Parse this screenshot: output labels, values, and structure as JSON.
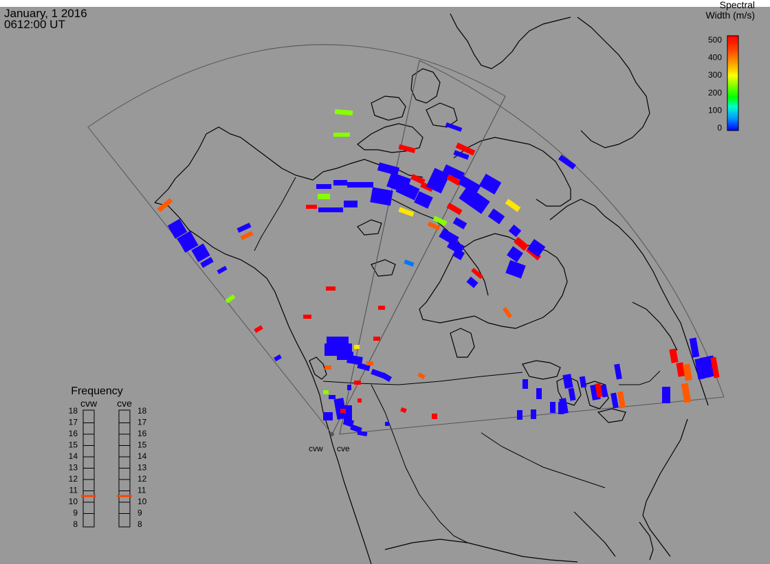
{
  "header": {
    "date": "January, 1 2016",
    "time": "0612:00 UT"
  },
  "colorbar": {
    "title_line1": "Spectral",
    "title_line2": "Width (m/s)",
    "ticks": [
      "500",
      "400",
      "300",
      "200",
      "100",
      "0"
    ],
    "gradient_colors": [
      "#ff0000",
      "#ff4400",
      "#ffa500",
      "#ffff00",
      "#66ff00",
      "#00ff00",
      "#00ffcc",
      "#0099ff",
      "#0000ff"
    ]
  },
  "frequency_panel": {
    "title": "Frequency",
    "radars": [
      "cvw",
      "cve"
    ],
    "ticks": [
      "18",
      "17",
      "16",
      "15",
      "14",
      "13",
      "12",
      "11",
      "10",
      "9",
      "8"
    ],
    "cvw_value": 10.6,
    "cve_value": 10.6,
    "marker_color": "#ff4400"
  },
  "radar_labels": {
    "west": "cvw",
    "east": "cve"
  },
  "colors": {
    "map_background": "#999999",
    "fov_outline": "#555555",
    "coast": "#000000",
    "scatter_blue": "#1a00ff",
    "scatter_red": "#ff0000",
    "scatter_orange": "#ff5a00",
    "scatter_yellow": "#ffe600",
    "scatter_green": "#88ff00",
    "scatter_cyan": "#0077ff"
  }
}
